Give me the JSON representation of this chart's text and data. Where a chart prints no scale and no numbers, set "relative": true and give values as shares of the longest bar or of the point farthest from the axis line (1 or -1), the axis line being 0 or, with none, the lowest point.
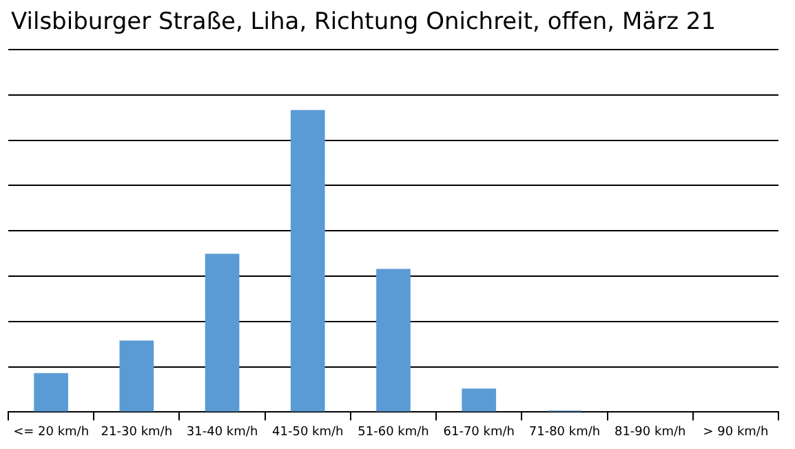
{
  "chart_data": {
    "type": "bar",
    "title": "Vilsbiburger  Straße, Liha, Richtung Onichreit, offen, März 21",
    "categories": [
      "<= 20 km/h",
      "21-30 km/h",
      "31-40 km/h",
      "41-50 km/h",
      "51-60 km/h",
      "61-70 km/h",
      "71-80 km/h",
      "81-90 km/h",
      "> 90 km/h"
    ],
    "values": [
      0.129,
      0.237,
      0.524,
      1,
      0.474,
      0.078,
      0.005,
      0,
      0
    ],
    "color": "#5b9bd5",
    "relative": true,
    "grid": "y",
    "legend": false
  }
}
